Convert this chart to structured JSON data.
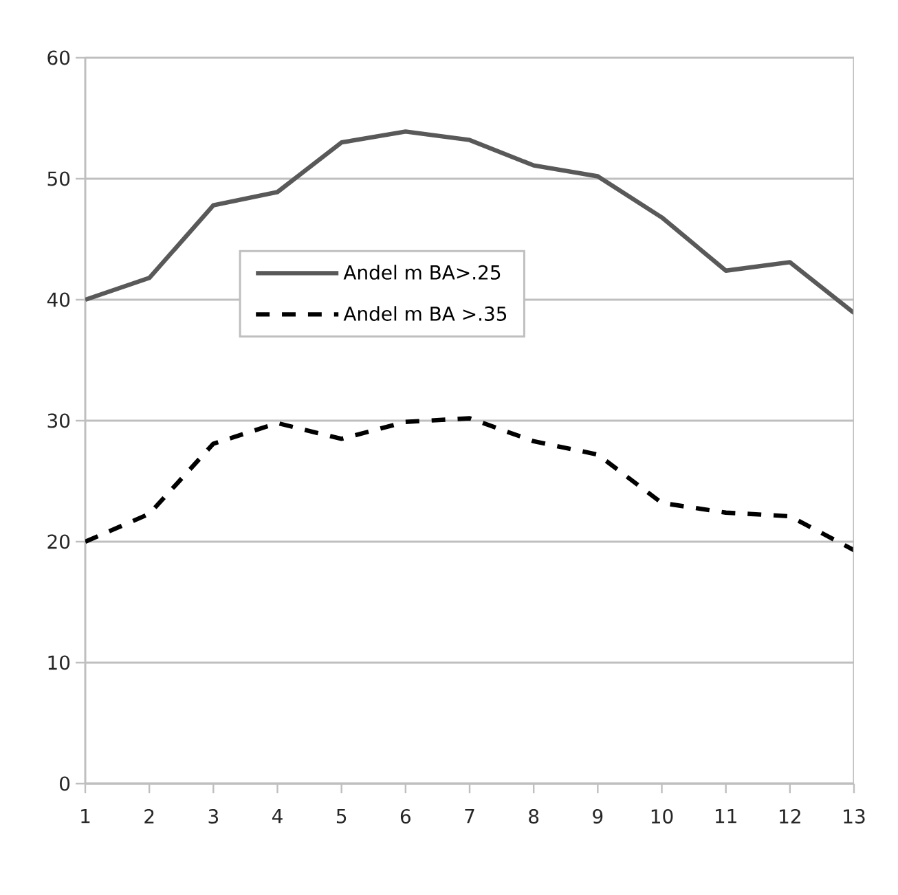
{
  "chart_data": {
    "type": "line",
    "categories": [
      "1",
      "2",
      "3",
      "4",
      "5",
      "6",
      "7",
      "8",
      "9",
      "10",
      "11",
      "12",
      "13"
    ],
    "series": [
      {
        "name": "Andel m BA>.25",
        "color": "#595959",
        "line_style": "solid",
        "values": [
          40,
          41.8,
          47.8,
          48.9,
          53,
          53.9,
          53.2,
          51.1,
          50.2,
          46.8,
          42.4,
          43.1,
          38.9
        ]
      },
      {
        "name": "Andel m BA >.35",
        "color": "#000000",
        "line_style": "dashed",
        "values": [
          20,
          22.3,
          28.1,
          29.8,
          28.5,
          29.9,
          30.2,
          28.3,
          27.2,
          23.2,
          22.4,
          22.1,
          19.3
        ]
      }
    ],
    "ylim": [
      0,
      60
    ],
    "yticks": [
      0,
      10,
      20,
      30,
      40,
      50,
      60
    ],
    "grid": "y",
    "legend": "center",
    "marker": "none"
  }
}
